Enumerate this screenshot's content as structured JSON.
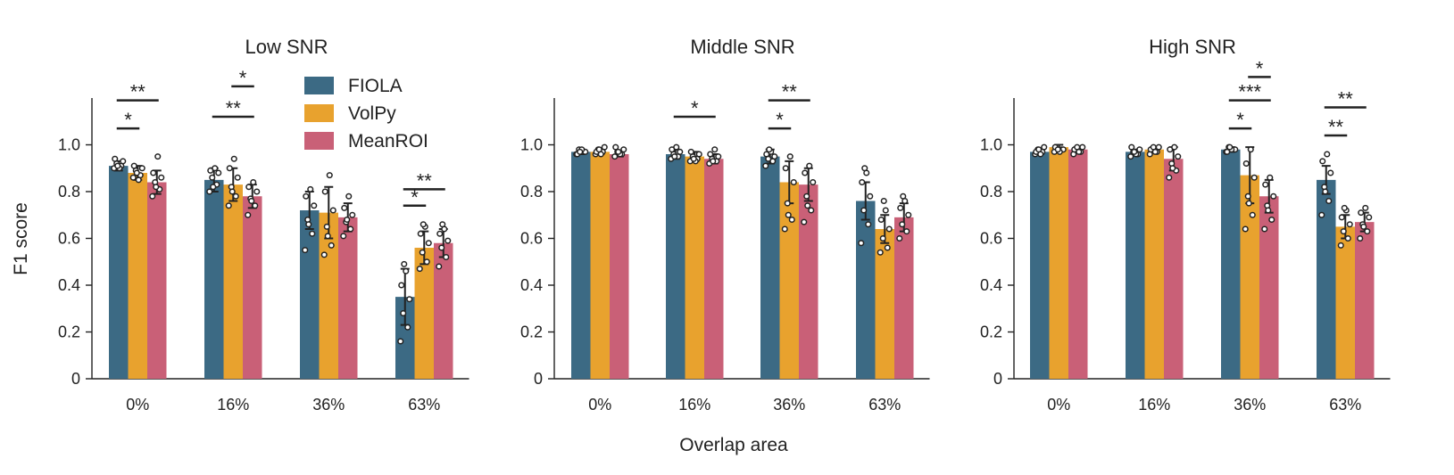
{
  "chart_data": {
    "type": "bar",
    "ylabel": "F1 score",
    "xlabel": "Overlap area",
    "ylim": [
      0,
      1.2
    ],
    "yticks": [
      {
        "value": 0,
        "label": "0"
      },
      {
        "value": 0.2,
        "label": "0.2"
      },
      {
        "value": 0.4,
        "label": "0.4"
      },
      {
        "value": 0.6,
        "label": "0.6"
      },
      {
        "value": 0.8,
        "label": "0.8"
      },
      {
        "value": 1.0,
        "label": "1.0"
      }
    ],
    "categories": [
      "0%",
      "16%",
      "36%",
      "63%"
    ],
    "legend": {
      "placement": "top-left, inside first panel",
      "entries": [
        {
          "label": "FIOLA",
          "color": "#3c6a84"
        },
        {
          "label": "VolPy",
          "color": "#e8a22e"
        },
        {
          "label": "MeanROI",
          "color": "#c96077"
        }
      ]
    },
    "series_colors": [
      "#3c6a84",
      "#e8a22e",
      "#c96077"
    ],
    "panels": [
      {
        "title": "Low SNR",
        "series": [
          {
            "name": "FIOLA",
            "values": [
              0.91,
              0.85,
              0.72,
              0.35
            ],
            "errors": [
              0.02,
              0.05,
              0.08,
              0.12
            ]
          },
          {
            "name": "VolPy",
            "values": [
              0.88,
              0.83,
              0.71,
              0.56
            ],
            "errors": [
              0.03,
              0.07,
              0.11,
              0.07
            ]
          },
          {
            "name": "MeanROI",
            "values": [
              0.84,
              0.78,
              0.69,
              0.58
            ],
            "errors": [
              0.05,
              0.05,
              0.06,
              0.06
            ]
          }
        ],
        "points": [
          [
            [
              0.9,
              0.91,
              0.92,
              0.93,
              0.94,
              0.9,
              0.91
            ],
            [
              0.86,
              0.87,
              0.89,
              0.9,
              0.91,
              0.85,
              0.88
            ],
            [
              0.78,
              0.81,
              0.84,
              0.86,
              0.88,
              0.95,
              0.82
            ]
          ],
          [
            [
              0.8,
              0.83,
              0.86,
              0.88,
              0.89,
              0.9,
              0.82
            ],
            [
              0.74,
              0.78,
              0.82,
              0.86,
              0.9,
              0.94,
              0.8
            ],
            [
              0.7,
              0.74,
              0.77,
              0.8,
              0.82,
              0.84,
              0.76
            ]
          ],
          [
            [
              0.55,
              0.62,
              0.68,
              0.74,
              0.78,
              0.81,
              0.66
            ],
            [
              0.53,
              0.57,
              0.65,
              0.72,
              0.8,
              0.87,
              0.61
            ],
            [
              0.61,
              0.64,
              0.67,
              0.7,
              0.73,
              0.78,
              0.68
            ]
          ],
          [
            [
              0.16,
              0.22,
              0.28,
              0.34,
              0.4,
              0.46,
              0.49
            ],
            [
              0.47,
              0.5,
              0.54,
              0.58,
              0.62,
              0.65,
              0.66
            ],
            [
              0.48,
              0.52,
              0.56,
              0.59,
              0.62,
              0.64,
              0.66
            ]
          ]
        ],
        "annotations": [
          {
            "category": 0,
            "from": 0,
            "to": 1,
            "label": "*",
            "y": 1.07
          },
          {
            "category": 0,
            "from": 0,
            "to": 2,
            "label": "**",
            "y": 1.19
          },
          {
            "category": 1,
            "from": 0,
            "to": 2,
            "label": "**",
            "y": 1.12
          },
          {
            "category": 1,
            "from": 1,
            "to": 2,
            "label": "*",
            "y": 1.25
          },
          {
            "category": 3,
            "from": 0,
            "to": 1,
            "label": "*",
            "y": 0.74
          },
          {
            "category": 3,
            "from": 0,
            "to": 2,
            "label": "**",
            "y": 0.81
          }
        ]
      },
      {
        "title": "Middle SNR",
        "series": [
          {
            "name": "FIOLA",
            "values": [
              0.97,
              0.96,
              0.95,
              0.76
            ],
            "errors": [
              0.01,
              0.02,
              0.03,
              0.08
            ]
          },
          {
            "name": "VolPy",
            "values": [
              0.97,
              0.95,
              0.84,
              0.64
            ],
            "errors": [
              0.01,
              0.02,
              0.09,
              0.06
            ]
          },
          {
            "name": "MeanROI",
            "values": [
              0.96,
              0.94,
              0.83,
              0.69
            ],
            "errors": [
              0.01,
              0.02,
              0.07,
              0.06
            ]
          }
        ],
        "points": [
          [
            [
              0.96,
              0.97,
              0.98,
              0.97,
              0.96,
              0.98,
              0.97
            ],
            [
              0.96,
              0.97,
              0.98,
              0.99,
              0.97,
              0.96,
              0.98
            ],
            [
              0.95,
              0.96,
              0.97,
              0.98,
              0.99,
              0.96,
              0.97
            ]
          ],
          [
            [
              0.94,
              0.95,
              0.96,
              0.97,
              0.98,
              0.99,
              0.95
            ],
            [
              0.93,
              0.94,
              0.95,
              0.96,
              0.97,
              0.93,
              0.94
            ],
            [
              0.92,
              0.93,
              0.94,
              0.95,
              0.96,
              0.98,
              0.93
            ]
          ],
          [
            [
              0.91,
              0.93,
              0.94,
              0.95,
              0.96,
              0.97,
              0.98
            ],
            [
              0.64,
              0.68,
              0.75,
              0.84,
              0.9,
              0.95,
              0.7
            ],
            [
              0.67,
              0.72,
              0.78,
              0.84,
              0.88,
              0.91,
              0.74
            ]
          ],
          [
            [
              0.58,
              0.66,
              0.72,
              0.78,
              0.84,
              0.88,
              0.9
            ],
            [
              0.54,
              0.56,
              0.6,
              0.64,
              0.68,
              0.72,
              0.76
            ],
            [
              0.6,
              0.63,
              0.66,
              0.7,
              0.73,
              0.76,
              0.78
            ]
          ]
        ],
        "annotations": [
          {
            "category": 1,
            "from": 0,
            "to": 2,
            "label": "*",
            "y": 1.12
          },
          {
            "category": 2,
            "from": 0,
            "to": 1,
            "label": "*",
            "y": 1.07
          },
          {
            "category": 2,
            "from": 0,
            "to": 2,
            "label": "**",
            "y": 1.19
          }
        ]
      },
      {
        "title": "High SNR",
        "series": [
          {
            "name": "FIOLA",
            "values": [
              0.97,
              0.97,
              0.98,
              0.85
            ],
            "errors": [
              0.01,
              0.01,
              0.01,
              0.06
            ]
          },
          {
            "name": "VolPy",
            "values": [
              0.99,
              0.98,
              0.87,
              0.65
            ],
            "errors": [
              0.01,
              0.01,
              0.12,
              0.05
            ]
          },
          {
            "name": "MeanROI",
            "values": [
              0.98,
              0.94,
              0.78,
              0.67
            ],
            "errors": [
              0.01,
              0.05,
              0.07,
              0.04
            ]
          }
        ],
        "points": [
          [
            [
              0.96,
              0.97,
              0.98,
              0.99,
              0.97,
              0.96,
              0.98
            ],
            [
              0.97,
              0.98,
              0.99,
              0.98,
              0.99,
              0.97,
              0.98
            ],
            [
              0.96,
              0.97,
              0.98,
              0.99,
              0.98,
              0.97,
              0.99
            ]
          ],
          [
            [
              0.95,
              0.96,
              0.97,
              0.98,
              0.99,
              0.96,
              0.97
            ],
            [
              0.96,
              0.97,
              0.98,
              0.99,
              0.98,
              0.97,
              0.99
            ],
            [
              0.86,
              0.89,
              0.92,
              0.95,
              0.98,
              0.99,
              0.9
            ]
          ],
          [
            [
              0.97,
              0.98,
              0.99,
              0.98,
              0.97,
              0.98,
              0.99
            ],
            [
              0.64,
              0.7,
              0.78,
              0.86,
              0.92,
              0.98,
              0.75
            ],
            [
              0.64,
              0.68,
              0.74,
              0.78,
              0.83,
              0.86,
              0.72
            ]
          ],
          [
            [
              0.7,
              0.76,
              0.82,
              0.88,
              0.93,
              0.96,
              0.8
            ],
            [
              0.57,
              0.6,
              0.63,
              0.66,
              0.69,
              0.72,
              0.73
            ],
            [
              0.6,
              0.63,
              0.66,
              0.69,
              0.71,
              0.73,
              0.65
            ]
          ]
        ],
        "annotations": [
          {
            "category": 2,
            "from": 0,
            "to": 1,
            "label": "*",
            "y": 1.07
          },
          {
            "category": 2,
            "from": 0,
            "to": 2,
            "label": "***",
            "y": 1.19
          },
          {
            "category": 2,
            "from": 1,
            "to": 2,
            "label": "*",
            "y": 1.29
          },
          {
            "category": 3,
            "from": 0,
            "to": 1,
            "label": "**",
            "y": 1.04
          },
          {
            "category": 3,
            "from": 0,
            "to": 2,
            "label": "**",
            "y": 1.16
          }
        ]
      }
    ]
  }
}
